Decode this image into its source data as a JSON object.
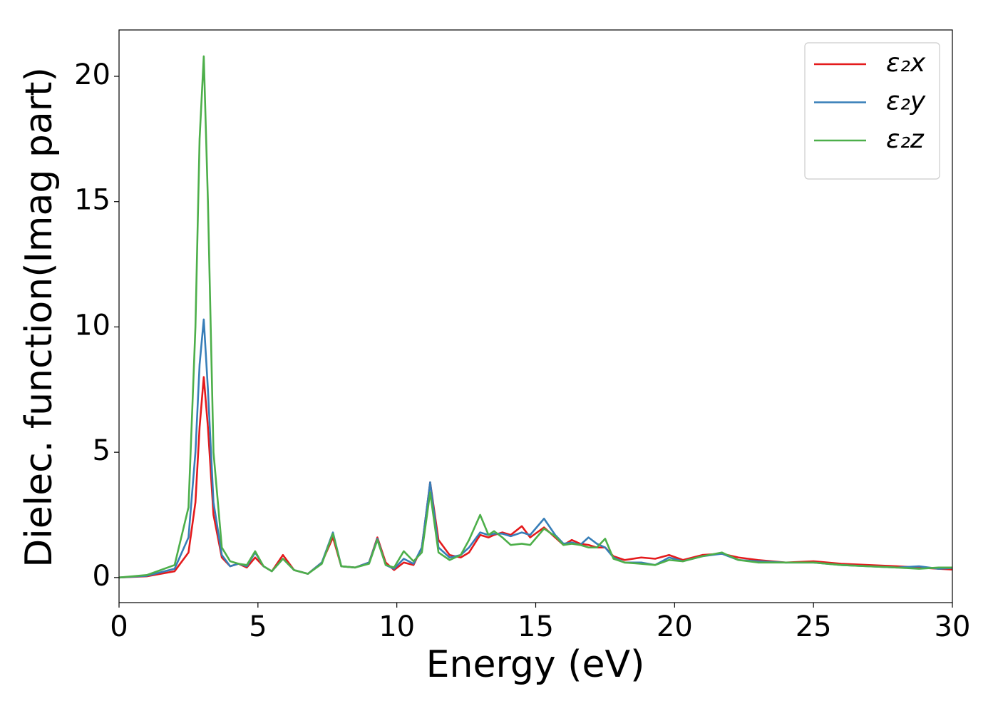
{
  "chart_data": {
    "type": "line",
    "xlabel": "Energy (eV)",
    "ylabel": "Dielec. function(Imag part)",
    "xlim": [
      0,
      30
    ],
    "ylim": [
      -1,
      21.85
    ],
    "xticks": [
      0,
      5,
      10,
      15,
      20,
      25,
      30
    ],
    "yticks": [
      0,
      5,
      10,
      15,
      20
    ],
    "legend": "upper right",
    "x": [
      0,
      1,
      2,
      2.5,
      2.75,
      2.9,
      3.05,
      3.2,
      3.4,
      3.7,
      4.0,
      4.3,
      4.6,
      4.9,
      5.2,
      5.5,
      5.9,
      6.3,
      6.8,
      7.3,
      7.7,
      8.0,
      8.5,
      9.0,
      9.3,
      9.6,
      9.9,
      10.25,
      10.6,
      10.9,
      11.2,
      11.5,
      11.9,
      12.3,
      12.6,
      13.0,
      13.3,
      13.5,
      13.8,
      14.1,
      14.5,
      14.8,
      15.3,
      15.7,
      16.0,
      16.3,
      16.6,
      16.9,
      17.2,
      17.5,
      17.8,
      18.2,
      18.8,
      19.3,
      19.8,
      20.3,
      21.0,
      21.7,
      22.3,
      23.0,
      24,
      25,
      26,
      27,
      28,
      28.8,
      29.5,
      30
    ],
    "series": [
      {
        "name": "ε₂x",
        "color": "#e41a1c",
        "values": [
          0,
          0.05,
          0.25,
          1.0,
          3.0,
          6.0,
          8.0,
          6.0,
          2.5,
          0.8,
          0.45,
          0.55,
          0.4,
          0.8,
          0.45,
          0.25,
          0.9,
          0.3,
          0.15,
          0.6,
          1.6,
          0.45,
          0.4,
          0.6,
          1.6,
          0.6,
          0.3,
          0.6,
          0.5,
          1.2,
          3.8,
          1.5,
          0.9,
          0.8,
          1.0,
          1.7,
          1.6,
          1.7,
          1.8,
          1.7,
          2.05,
          1.6,
          2.0,
          1.6,
          1.3,
          1.5,
          1.35,
          1.3,
          1.2,
          1.2,
          0.85,
          0.7,
          0.8,
          0.75,
          0.9,
          0.7,
          0.9,
          0.95,
          0.8,
          0.7,
          0.6,
          0.65,
          0.55,
          0.5,
          0.45,
          0.4,
          0.35,
          0.32
        ]
      },
      {
        "name": "ε₂y",
        "color": "#377eb8",
        "values": [
          0,
          0.07,
          0.35,
          1.6,
          5.0,
          8.5,
          10.3,
          7.5,
          3.0,
          0.9,
          0.45,
          0.55,
          0.45,
          1.0,
          0.45,
          0.25,
          0.75,
          0.3,
          0.15,
          0.6,
          1.8,
          0.45,
          0.4,
          0.6,
          1.55,
          0.5,
          0.35,
          0.75,
          0.55,
          1.2,
          3.8,
          1.2,
          0.8,
          0.9,
          1.2,
          1.8,
          1.7,
          1.75,
          1.75,
          1.65,
          1.8,
          1.7,
          2.35,
          1.7,
          1.35,
          1.4,
          1.3,
          1.6,
          1.35,
          1.2,
          0.8,
          0.6,
          0.6,
          0.5,
          0.8,
          0.65,
          0.85,
          0.95,
          0.7,
          0.65,
          0.6,
          0.6,
          0.5,
          0.45,
          0.4,
          0.45,
          0.35,
          0.38
        ]
      },
      {
        "name": "ε₂z",
        "color": "#4daf4a",
        "values": [
          0,
          0.1,
          0.5,
          2.8,
          10.0,
          17.5,
          20.8,
          15.0,
          5.0,
          1.2,
          0.65,
          0.55,
          0.5,
          1.05,
          0.45,
          0.25,
          0.75,
          0.3,
          0.15,
          0.55,
          1.75,
          0.45,
          0.4,
          0.55,
          1.5,
          0.5,
          0.4,
          1.05,
          0.65,
          1.0,
          3.4,
          1.0,
          0.7,
          0.9,
          1.5,
          2.5,
          1.7,
          1.85,
          1.6,
          1.3,
          1.35,
          1.3,
          1.95,
          1.65,
          1.3,
          1.35,
          1.3,
          1.2,
          1.2,
          1.55,
          0.75,
          0.6,
          0.55,
          0.5,
          0.7,
          0.65,
          0.85,
          1.0,
          0.7,
          0.6,
          0.6,
          0.6,
          0.5,
          0.45,
          0.4,
          0.35,
          0.4,
          0.4
        ]
      }
    ]
  }
}
